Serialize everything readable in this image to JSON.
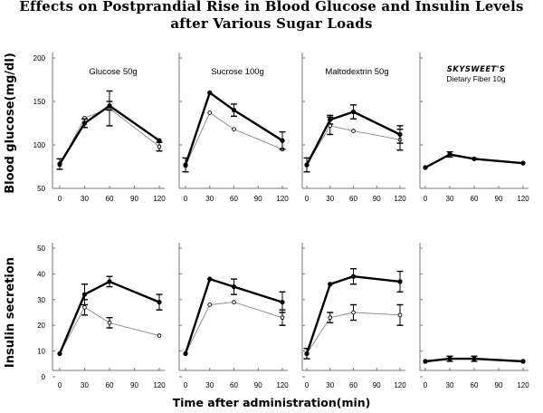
{
  "title_lines": [
    "Effects on Postprandial Rise in Blood Glucose and Insulin Levels",
    "after Various Sugar Loads"
  ],
  "xlabel": "Time after administration(min)",
  "chart_data": [
    {
      "type": "line",
      "ylabel": "Blood glucose(mg/dl)",
      "ylim": [
        50,
        200
      ],
      "yticks": [
        "50",
        "100",
        "150",
        "200"
      ],
      "x": [
        0,
        30,
        60,
        90,
        120
      ],
      "xtick_labels": [
        "0",
        "30",
        "60",
        "90",
        "120"
      ],
      "panels": [
        {
          "label_lines": [
            "Glucose 50g"
          ],
          "series": [
            {
              "style": "bold",
              "x": [
                0,
                30,
                60,
                120
              ],
              "y": [
                78,
                125,
                145,
                105
              ],
              "err": [
                6,
                5,
                5,
                0
              ]
            },
            {
              "style": "thin",
              "x": [
                0,
                30,
                60,
                120
              ],
              "y": [
                77,
                131,
                142,
                98
              ],
              "err": [
                0,
                0,
                20,
                5
              ]
            }
          ]
        },
        {
          "label_lines": [
            "Sucrose 100g"
          ],
          "series": [
            {
              "style": "bold",
              "x": [
                0,
                30,
                60,
                120
              ],
              "y": [
                77,
                160,
                140,
                105
              ],
              "err": [
                8,
                0,
                7,
                10
              ]
            },
            {
              "style": "thin",
              "x": [
                0,
                30,
                60,
                120
              ],
              "y": [
                76,
                137,
                118,
                95
              ],
              "err": [
                0,
                0,
                0,
                0
              ]
            }
          ]
        },
        {
          "label_lines": [
            "Maltodextrin 50g"
          ],
          "series": [
            {
              "style": "bold",
              "x": [
                0,
                30,
                60,
                120
              ],
              "y": [
                77,
                129,
                138,
                112
              ],
              "err": [
                8,
                5,
                8,
                10
              ]
            },
            {
              "style": "thin",
              "x": [
                0,
                30,
                60,
                120
              ],
              "y": [
                77,
                122,
                116,
                106
              ],
              "err": [
                0,
                10,
                0,
                12
              ]
            }
          ]
        },
        {
          "label_lines": [
            "SKYSWEET'S",
            "Dietary Fiber 10g"
          ],
          "series": [
            {
              "style": "bold",
              "x": [
                0,
                30,
                60,
                120
              ],
              "y": [
                74,
                89,
                84,
                79
              ],
              "err": [
                0,
                3,
                0,
                0
              ]
            }
          ]
        }
      ]
    },
    {
      "type": "line",
      "ylabel": "Insulin secretion",
      "ylim": [
        0,
        50
      ],
      "yticks": [
        "0",
        "10",
        "20",
        "30",
        "40",
        "50"
      ],
      "x": [
        0,
        30,
        60,
        90,
        120
      ],
      "xtick_labels": [
        "0",
        "30",
        "60",
        "90",
        "120"
      ],
      "panels": [
        {
          "series": [
            {
              "style": "bold",
              "x": [
                0,
                30,
                60,
                120
              ],
              "y": [
                9,
                32,
                37,
                29
              ],
              "err": [
                0,
                4,
                2,
                3
              ]
            },
            {
              "style": "thin",
              "x": [
                0,
                30,
                60,
                120
              ],
              "y": [
                9,
                27,
                21,
                16
              ],
              "err": [
                0,
                3,
                2,
                0
              ]
            }
          ]
        },
        {
          "series": [
            {
              "style": "bold",
              "x": [
                0,
                30,
                60,
                120
              ],
              "y": [
                9,
                38,
                35,
                29
              ],
              "err": [
                0,
                0,
                3,
                4
              ]
            },
            {
              "style": "thin",
              "x": [
                0,
                30,
                60,
                120
              ],
              "y": [
                9,
                28,
                29,
                23
              ],
              "err": [
                0,
                0,
                0,
                3
              ]
            }
          ]
        },
        {
          "series": [
            {
              "style": "bold",
              "x": [
                0,
                30,
                60,
                120
              ],
              "y": [
                9,
                36,
                39,
                37
              ],
              "err": [
                2,
                0,
                3,
                4
              ]
            },
            {
              "style": "thin",
              "x": [
                0,
                30,
                60,
                120
              ],
              "y": [
                9,
                23,
                25,
                24
              ],
              "err": [
                0,
                2,
                3,
                4
              ]
            }
          ]
        },
        {
          "series": [
            {
              "style": "bold",
              "x": [
                0,
                30,
                60,
                120
              ],
              "y": [
                6,
                7,
                7,
                6
              ],
              "err": [
                0,
                1,
                1,
                0
              ]
            }
          ]
        }
      ]
    }
  ]
}
